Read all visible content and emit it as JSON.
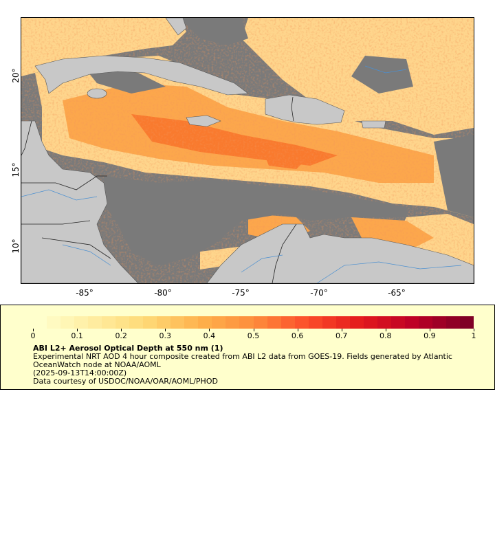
{
  "map": {
    "y_ticks": [
      "20°",
      "15°",
      "10°"
    ],
    "x_ticks": [
      "-85°",
      "-80°",
      "-75°",
      "-70°",
      "-65°"
    ],
    "colors": {
      "ocean_no_data": "#7a7a7a",
      "land": "#c8c8c8",
      "rivers": "#4a8fd0",
      "borders": "#3a3a3a"
    }
  },
  "colorbar": {
    "min": 0,
    "max": 1,
    "tick_labels": [
      "0",
      "0.1",
      "0.2",
      "0.3",
      "0.4",
      "0.5",
      "0.6",
      "0.7",
      "0.8",
      "0.9",
      "1"
    ],
    "colors": [
      "#ffffcc",
      "#ffeda0",
      "#fed976",
      "#feb24c",
      "#fd8d3c",
      "#fc4e2a",
      "#e31a1c",
      "#bd0026",
      "#800026"
    ]
  },
  "legend": {
    "title": "ABI L2+ Aerosol Optical Depth at 550 nm (1)",
    "line1": "Experimental NRT AOD 4 hour composite created from ABI L2 data from GOES-19. Fields generated by Atlantic OceanWatch node at NOAA/AOML",
    "line2": "(2025-09-13T14:00:00Z)",
    "line3": "Data courtesy of USDOC/NOAA/OAR/AOML/PHOD"
  }
}
